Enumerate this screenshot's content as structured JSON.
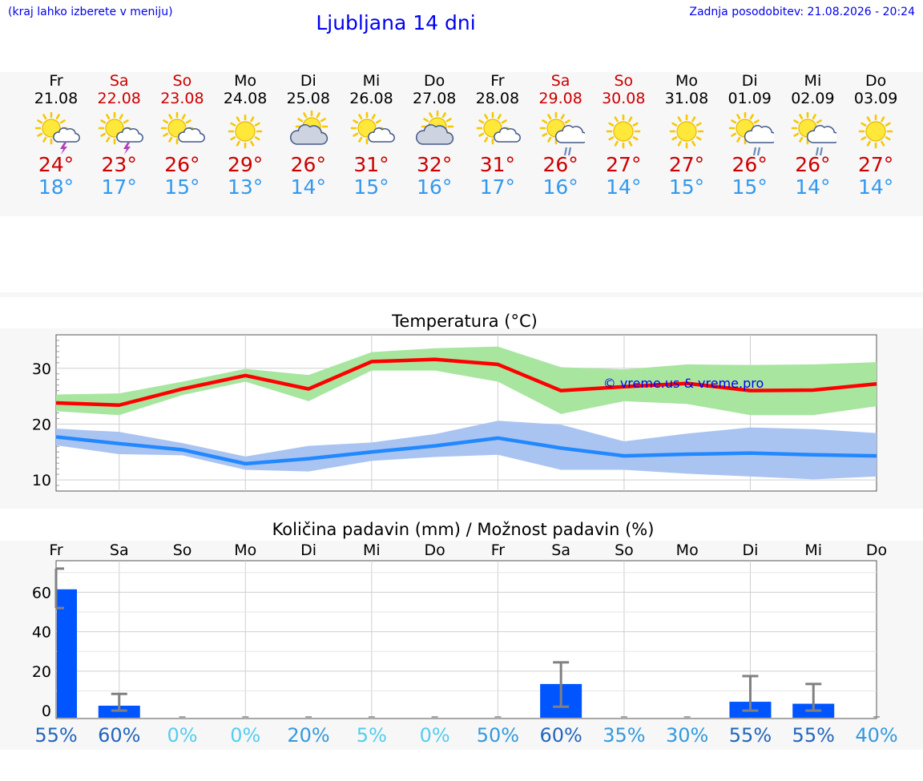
{
  "header": {
    "note": "(kraj lahko izberete v meniju)",
    "title": "Ljubljana 14 dni",
    "updated": "Zadnja posodobitev: 21.08.2026 - 20:24"
  },
  "colors": {
    "weekday": "#000000",
    "weekend": "#cc0000",
    "t_max": "#cc0000",
    "t_min": "#3399ee",
    "max_line": "#ff0000",
    "max_band": "#a8e6a0",
    "min_line": "#2288ff",
    "min_band": "#aac4f2",
    "bar": "#0055ff",
    "error_bar": "#808080"
  },
  "days": [
    {
      "name": "Fr",
      "date": "21.08",
      "weekend": false,
      "icon": "sun-cloud-lightning-icon",
      "tmax": "24°",
      "tmin": "18°"
    },
    {
      "name": "Sa",
      "date": "22.08",
      "weekend": true,
      "icon": "sun-cloud-lightning-icon",
      "tmax": "23°",
      "tmin": "17°"
    },
    {
      "name": "So",
      "date": "23.08",
      "weekend": true,
      "icon": "sun-small-cloud-icon",
      "tmax": "26°",
      "tmin": "15°"
    },
    {
      "name": "Mo",
      "date": "24.08",
      "weekend": false,
      "icon": "sun-icon",
      "tmax": "29°",
      "tmin": "13°"
    },
    {
      "name": "Di",
      "date": "25.08",
      "weekend": false,
      "icon": "sun-big-cloud-icon",
      "tmax": "26°",
      "tmin": "14°"
    },
    {
      "name": "Mi",
      "date": "26.08",
      "weekend": false,
      "icon": "sun-small-cloud-icon",
      "tmax": "31°",
      "tmin": "15°"
    },
    {
      "name": "Do",
      "date": "27.08",
      "weekend": false,
      "icon": "sun-big-cloud-icon",
      "tmax": "32°",
      "tmin": "16°"
    },
    {
      "name": "Fr",
      "date": "28.08",
      "weekend": false,
      "icon": "sun-small-cloud-icon",
      "tmax": "31°",
      "tmin": "17°"
    },
    {
      "name": "Sa",
      "date": "29.08",
      "weekend": true,
      "icon": "sun-cloud-rain-icon",
      "tmax": "26°",
      "tmin": "16°"
    },
    {
      "name": "So",
      "date": "30.08",
      "weekend": true,
      "icon": "sun-icon",
      "tmax": "27°",
      "tmin": "14°"
    },
    {
      "name": "Mo",
      "date": "31.08",
      "weekend": false,
      "icon": "sun-icon",
      "tmax": "27°",
      "tmin": "15°"
    },
    {
      "name": "Di",
      "date": "01.09",
      "weekend": false,
      "icon": "sun-cloud-rain-icon",
      "tmax": "26°",
      "tmin": "15°"
    },
    {
      "name": "Mi",
      "date": "02.09",
      "weekend": false,
      "icon": "sun-cloud-rain-icon",
      "tmax": "26°",
      "tmin": "14°"
    },
    {
      "name": "Do",
      "date": "03.09",
      "weekend": false,
      "icon": "sun-icon",
      "tmax": "27°",
      "tmin": "14°"
    }
  ],
  "chart_data": [
    {
      "type": "line",
      "title": "Temperatura (°C)",
      "watermark": "© vreme.us & vreme.pro",
      "ylim": [
        8,
        36
      ],
      "yticks": [
        10,
        20,
        30
      ],
      "grid": true,
      "x": [
        "21.08",
        "22.08",
        "23.08",
        "24.08",
        "25.08",
        "26.08",
        "27.08",
        "28.08",
        "29.08",
        "30.08",
        "31.08",
        "01.09",
        "02.09",
        "03.09"
      ],
      "series": [
        {
          "role": "max",
          "values": [
            23.8,
            23.4,
            26.3,
            28.7,
            26.3,
            31.2,
            31.6,
            30.7,
            26.0,
            26.7,
            27.3,
            26.0,
            26.1,
            27.2
          ],
          "band_low": [
            22.3,
            21.6,
            25.2,
            27.6,
            24.1,
            29.6,
            29.6,
            27.6,
            21.8,
            24.1,
            23.6,
            21.6,
            21.6,
            23.2
          ],
          "band_high": [
            25.3,
            25.5,
            27.6,
            29.9,
            28.8,
            32.9,
            33.6,
            33.9,
            30.2,
            29.8,
            30.7,
            30.6,
            30.7,
            31.1
          ]
        },
        {
          "role": "min",
          "values": [
            17.7,
            16.5,
            15.4,
            12.9,
            13.8,
            15.0,
            16.1,
            17.5,
            15.7,
            14.3,
            14.6,
            14.8,
            14.5,
            14.3
          ],
          "band_low": [
            16.2,
            14.6,
            14.4,
            11.8,
            11.5,
            13.4,
            14.1,
            14.5,
            11.8,
            11.8,
            11.1,
            10.6,
            10.1,
            10.6
          ],
          "band_high": [
            19.2,
            18.6,
            16.6,
            14.2,
            16.1,
            16.7,
            18.2,
            20.6,
            19.9,
            16.9,
            18.3,
            19.4,
            19.1,
            18.4
          ]
        }
      ]
    },
    {
      "type": "bar",
      "title": "Količina padavin (mm) / Možnost padavin (%)",
      "ylim": [
        -4,
        76
      ],
      "yticks": [
        0,
        20,
        40,
        60
      ],
      "grid": true,
      "categories": [
        "Fr",
        "Sa",
        "So",
        "Mo",
        "Di",
        "Mi",
        "Do",
        "Fr",
        "Sa",
        "So",
        "Mo",
        "Di",
        "Mi",
        "Do"
      ],
      "values": [
        61.5,
        2.5,
        0,
        0,
        0,
        0,
        0,
        0,
        13.5,
        0,
        0,
        4.5,
        3.5,
        0
      ],
      "error_low": [
        52,
        0,
        0,
        0,
        0,
        0,
        0,
        0,
        2,
        0,
        0,
        0,
        0,
        0
      ],
      "error_high": [
        72,
        8.5,
        0,
        0,
        0,
        0,
        0,
        0,
        24.5,
        0,
        0,
        17.5,
        13.5,
        0
      ],
      "chance": [
        "55%",
        "60%",
        "0%",
        "0%",
        "20%",
        "5%",
        "0%",
        "50%",
        "60%",
        "35%",
        "30%",
        "55%",
        "55%",
        "40%"
      ],
      "chance_colors": [
        "#2266bb",
        "#2266bb",
        "#55ccee",
        "#55ccee",
        "#3399dd",
        "#55ccee",
        "#55ccee",
        "#3399dd",
        "#2266bb",
        "#3399dd",
        "#3399dd",
        "#2266bb",
        "#2266bb",
        "#3399dd"
      ]
    }
  ]
}
